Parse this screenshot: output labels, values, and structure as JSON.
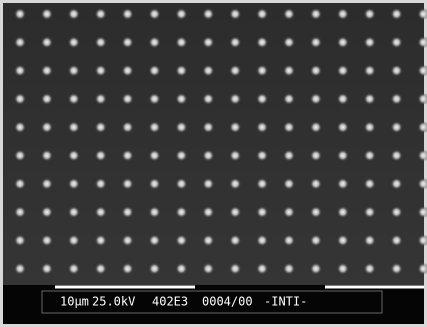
{
  "info_bar": {
    "scale": "10μm",
    "voltage": "25.0kV",
    "magnification": "402E3",
    "frame": "0004/00",
    "label": "-INTI-"
  }
}
